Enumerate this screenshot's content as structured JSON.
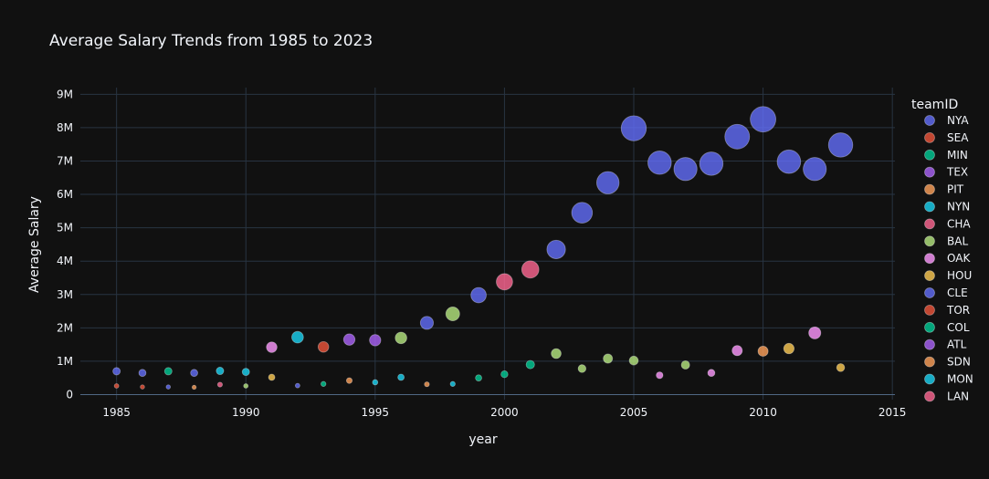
{
  "chart_data": {
    "type": "scatter",
    "title": "Average Salary Trends from 1985 to 2023",
    "xlabel": "year",
    "ylabel": "Average Salary",
    "xlim": [
      1983.6,
      2015.1
    ],
    "ylim": [
      -150000,
      9200000
    ],
    "x_ticks": [
      1985,
      1990,
      1995,
      2000,
      2005,
      2010,
      2015
    ],
    "y_ticks": [
      {
        "value": 0,
        "label": "0"
      },
      {
        "value": 1000000,
        "label": "1M"
      },
      {
        "value": 2000000,
        "label": "2M"
      },
      {
        "value": 3000000,
        "label": "3M"
      },
      {
        "value": 4000000,
        "label": "4M"
      },
      {
        "value": 5000000,
        "label": "5M"
      },
      {
        "value": 6000000,
        "label": "6M"
      },
      {
        "value": 7000000,
        "label": "7M"
      },
      {
        "value": 8000000,
        "label": "8M"
      },
      {
        "value": 9000000,
        "label": "9M"
      }
    ],
    "grid": true,
    "legend_position": "right",
    "legend_title": "teamID",
    "size_max_value": 8250000,
    "series": [
      {
        "name": "NYA",
        "color": "#636efa",
        "points": [
          [
            1985,
            700000
          ],
          [
            1986,
            650000
          ],
          [
            1988,
            650000
          ],
          [
            1999,
            2980000
          ],
          [
            2002,
            4350000
          ],
          [
            2003,
            5450000
          ],
          [
            2004,
            6350000
          ],
          [
            2005,
            7980000
          ],
          [
            2006,
            6950000
          ],
          [
            2007,
            6760000
          ],
          [
            2008,
            6920000
          ],
          [
            2009,
            7730000
          ],
          [
            2010,
            8250000
          ],
          [
            2011,
            6980000
          ],
          [
            2012,
            6760000
          ],
          [
            2013,
            7480000
          ]
        ]
      },
      {
        "name": "SEA",
        "color": "#ef553b",
        "points": [
          [
            1986,
            230000
          ],
          [
            1993,
            1430000
          ]
        ]
      },
      {
        "name": "MIN",
        "color": "#00cc96",
        "points": [
          [
            1987,
            700000
          ],
          [
            1993,
            320000
          ],
          [
            2000,
            610000
          ],
          [
            2001,
            900000
          ]
        ]
      },
      {
        "name": "TEX",
        "color": "#ab63fa",
        "points": [
          [
            1994,
            1650000
          ],
          [
            1995,
            1630000
          ]
        ]
      },
      {
        "name": "PIT",
        "color": "#ffa15a",
        "points": [
          [
            1988,
            220000
          ],
          [
            1994,
            420000
          ],
          [
            1997,
            310000
          ]
        ]
      },
      {
        "name": "NYN",
        "color": "#19d3f3",
        "points": [
          [
            1989,
            710000
          ],
          [
            1990,
            680000
          ],
          [
            1992,
            1720000
          ],
          [
            1996,
            520000
          ]
        ]
      },
      {
        "name": "CHA",
        "color": "#ff6692",
        "points": [
          [
            1989,
            300000
          ],
          [
            2000,
            3380000
          ],
          [
            2001,
            3750000
          ]
        ]
      },
      {
        "name": "BAL",
        "color": "#b6e880",
        "points": [
          [
            1990,
            260000
          ],
          [
            1996,
            1700000
          ],
          [
            1998,
            2420000
          ],
          [
            2002,
            1230000
          ],
          [
            2003,
            780000
          ],
          [
            2004,
            1080000
          ],
          [
            2005,
            1020000
          ],
          [
            2007,
            890000
          ]
        ]
      },
      {
        "name": "OAK",
        "color": "#ff97ff",
        "points": [
          [
            1991,
            1420000
          ],
          [
            2006,
            580000
          ],
          [
            2008,
            650000
          ],
          [
            2009,
            1320000
          ],
          [
            2012,
            1850000
          ]
        ]
      },
      {
        "name": "HOU",
        "color": "#fecb52",
        "points": [
          [
            1991,
            520000
          ],
          [
            2011,
            1380000
          ],
          [
            2013,
            810000
          ]
        ]
      },
      {
        "name": "CLE",
        "color": "#636efa",
        "points": [
          [
            1987,
            230000
          ],
          [
            1992,
            270000
          ],
          [
            1997,
            2150000
          ]
        ]
      },
      {
        "name": "TOR",
        "color": "#ef553b",
        "points": [
          [
            1985,
            260000
          ]
        ]
      },
      {
        "name": "COL",
        "color": "#00cc96",
        "points": [
          [
            1999,
            500000
          ]
        ]
      },
      {
        "name": "ATL",
        "color": "#ab63fa",
        "points": []
      },
      {
        "name": "SDN",
        "color": "#ffa15a",
        "points": [
          [
            2010,
            1300000
          ]
        ]
      },
      {
        "name": "MON",
        "color": "#19d3f3",
        "points": [
          [
            1995,
            370000
          ],
          [
            1998,
            320000
          ]
        ]
      },
      {
        "name": "LAN",
        "color": "#ff6692",
        "points": []
      }
    ]
  }
}
